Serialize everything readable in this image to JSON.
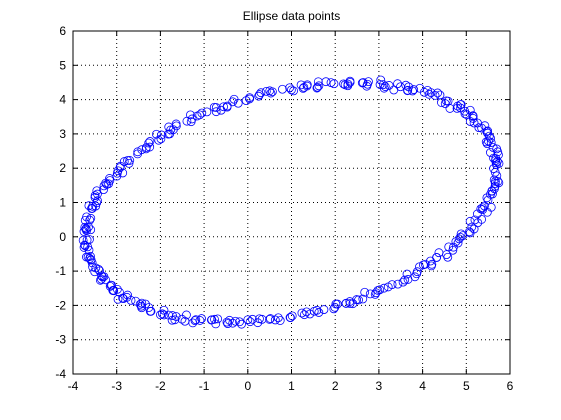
{
  "chart_data": {
    "type": "scatter",
    "title": "Ellipse data points",
    "xlabel": "",
    "ylabel": "",
    "xlim": [
      -4,
      6
    ],
    "ylim": [
      -4,
      6
    ],
    "xticks": [
      -4,
      -3,
      -2,
      -1,
      0,
      1,
      2,
      3,
      4,
      5,
      6
    ],
    "yticks": [
      -4,
      -3,
      -2,
      -1,
      0,
      1,
      2,
      3,
      4,
      5,
      6
    ],
    "grid": "dotted",
    "marker": "open-circle",
    "color": "#0000ff",
    "ellipse": {
      "center": [
        1.0,
        1.0
      ],
      "semi_major": 4.9,
      "semi_minor": 3.2,
      "rotation_deg": 22
    },
    "point_count": 360
  }
}
